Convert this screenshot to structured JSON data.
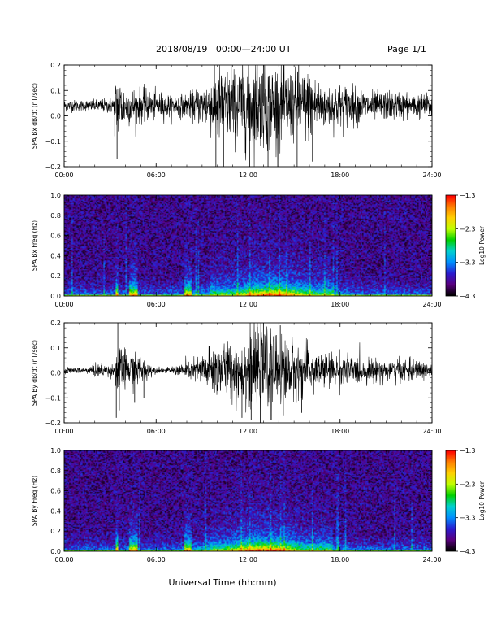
{
  "header": {
    "title": "2018/08/19   00:00—24:00 UT",
    "page": "Page 1/1"
  },
  "footer": {
    "xlabel": "Universal Time (hh:mm)"
  },
  "chart_data": [
    {
      "type": "line",
      "ylabel": "SPA Bx dB/dt (nT/sec)",
      "x_ticks": [
        "00:00",
        "06:00",
        "12:00",
        "18:00",
        "24:00"
      ],
      "xlim_hours": [
        0,
        24
      ],
      "ylim": [
        -0.2,
        0.2
      ],
      "y_ticks": [
        "0.2",
        "0.1",
        "0.0",
        "−0.1",
        "−0.2"
      ],
      "series": [
        {
          "baseline": 0.04,
          "envelope": [
            [
              0,
              0.02
            ],
            [
              2,
              0.02
            ],
            [
              3.3,
              0.03
            ],
            [
              3.4,
              0.12
            ],
            [
              4,
              0.07
            ],
            [
              6,
              0.05
            ],
            [
              7,
              0.04
            ],
            [
              8,
              0.04
            ],
            [
              9,
              0.07
            ],
            [
              10,
              0.14
            ],
            [
              11,
              0.12
            ],
            [
              12,
              0.16
            ],
            [
              13,
              0.16
            ],
            [
              14,
              0.15
            ],
            [
              15,
              0.12
            ],
            [
              16,
              0.12
            ],
            [
              17,
              0.08
            ],
            [
              18,
              0.08
            ],
            [
              20,
              0.05
            ],
            [
              22,
              0.05
            ],
            [
              24,
              0.04
            ]
          ],
          "spikes": [
            [
              3.45,
              -0.17
            ],
            [
              3.3,
              -0.08
            ],
            [
              9.9,
              -0.24
            ],
            [
              10.4,
              -0.22
            ],
            [
              12.1,
              -0.25
            ],
            [
              13.3,
              -0.24
            ],
            [
              14.0,
              -0.26
            ],
            [
              15.2,
              -0.22
            ],
            [
              16.2,
              -0.18
            ],
            [
              9.8,
              0.22
            ],
            [
              10.9,
              0.21
            ],
            [
              12.6,
              0.23
            ],
            [
              13.0,
              0.22
            ],
            [
              15.3,
              0.21
            ]
          ]
        }
      ]
    },
    {
      "type": "heatmap",
      "ylabel": "SPA Bx Freq (Hz)",
      "x_ticks": [
        "00:00",
        "06:00",
        "12:00",
        "18:00",
        "24:00"
      ],
      "y_ticks": [
        "1.0",
        "0.8",
        "0.6",
        "0.4",
        "0.2",
        "0.0"
      ],
      "ylim": [
        0,
        1
      ],
      "colorbar_label": "Log10 Power",
      "colorbar_ticks": [
        "−1.3",
        "−2.3",
        "−3.3",
        "−4.3"
      ],
      "colorbar_range": [
        -4.3,
        -1.3
      ],
      "colorscale": [
        "#000000",
        "#5a0080",
        "#2a1cd0",
        "#0090ff",
        "#00d0d0",
        "#00d000",
        "#c0ff00",
        "#ffd000",
        "#ff8000",
        "#ff0000"
      ],
      "background_log_power": -3.9,
      "low_freq_peak_log_power": -2.0,
      "activity_hours": [
        [
          3.3,
          3.5
        ],
        [
          4.2,
          4.8
        ],
        [
          7.8,
          8.3
        ],
        [
          9.5,
          17.5
        ]
      ],
      "active_peak_hour": 13.5
    },
    {
      "type": "line",
      "ylabel": "SPA By dB/dt (nT/sec)",
      "x_ticks": [
        "00:00",
        "06:00",
        "12:00",
        "18:00",
        "24:00"
      ],
      "xlim_hours": [
        0,
        24
      ],
      "ylim": [
        -0.2,
        0.2
      ],
      "y_ticks": [
        "0.2",
        "0.1",
        "0.0",
        "−0.1",
        "−0.2"
      ],
      "series": [
        {
          "baseline": 0.01,
          "envelope": [
            [
              0,
              0.01
            ],
            [
              1.5,
              0.01
            ],
            [
              2,
              0.025
            ],
            [
              3.3,
              0.02
            ],
            [
              3.4,
              0.09
            ],
            [
              4,
              0.07
            ],
            [
              5,
              0.05
            ],
            [
              6,
              0.01
            ],
            [
              7,
              0.01
            ],
            [
              7.8,
              0.03
            ],
            [
              8.5,
              0.04
            ],
            [
              9,
              0.06
            ],
            [
              10,
              0.1
            ],
            [
              11,
              0.1
            ],
            [
              12,
              0.14
            ],
            [
              13,
              0.14
            ],
            [
              14,
              0.12
            ],
            [
              15,
              0.1
            ],
            [
              16,
              0.08
            ],
            [
              17,
              0.06
            ],
            [
              18,
              0.06
            ],
            [
              20,
              0.04
            ],
            [
              22,
              0.04
            ],
            [
              24,
              0.03
            ]
          ],
          "spikes": [
            [
              3.4,
              -0.18
            ],
            [
              3.6,
              -0.15
            ],
            [
              4.6,
              -0.12
            ],
            [
              5.2,
              -0.1
            ],
            [
              11.6,
              -0.18
            ],
            [
              12.2,
              -0.19
            ],
            [
              12.8,
              -0.21
            ],
            [
              13.5,
              -0.19
            ],
            [
              14.3,
              -0.17
            ],
            [
              15.5,
              -0.16
            ],
            [
              3.5,
              0.2
            ],
            [
              12.0,
              0.23
            ],
            [
              12.6,
              0.21
            ],
            [
              13.0,
              0.2
            ],
            [
              14.1,
              0.19
            ]
          ]
        }
      ]
    },
    {
      "type": "heatmap",
      "ylabel": "SPA By Freq (Hz)",
      "x_ticks": [
        "00:00",
        "06:00",
        "12:00",
        "18:00",
        "24:00"
      ],
      "y_ticks": [
        "1.0",
        "0.8",
        "0.6",
        "0.4",
        "0.2",
        "0.0"
      ],
      "ylim": [
        0,
        1
      ],
      "colorbar_label": "Log10 Power",
      "colorbar_ticks": [
        "−1.3",
        "−2.3",
        "−3.3",
        "−4.3"
      ],
      "colorbar_range": [
        -4.3,
        -1.3
      ],
      "colorscale": [
        "#000000",
        "#5a0080",
        "#2a1cd0",
        "#0090ff",
        "#00d0d0",
        "#00d000",
        "#c0ff00",
        "#ffd000",
        "#ff8000",
        "#ff0000"
      ],
      "background_log_power": -3.9,
      "low_freq_peak_log_power": -2.1,
      "activity_hours": [
        [
          3.3,
          3.5
        ],
        [
          4.2,
          4.8
        ],
        [
          7.8,
          8.3
        ],
        [
          9.5,
          17.5
        ]
      ],
      "active_peak_hour": 13.0
    }
  ]
}
